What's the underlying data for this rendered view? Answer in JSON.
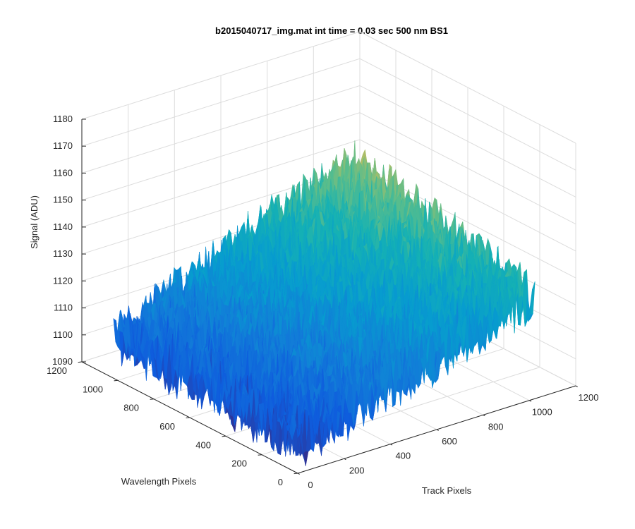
{
  "chart_data": {
    "type": "surface",
    "title": "b2015040717_img.mat int time = 0.03 sec  500 nm BS1",
    "xlabel": "Track Pixels",
    "ylabel": "Wavelength Pixels",
    "zlabel": "Signal (ADU)",
    "xlim": [
      0,
      1200
    ],
    "ylim": [
      0,
      1200
    ],
    "zlim": [
      1090,
      1180
    ],
    "x_ticks": [
      "0",
      "200",
      "400",
      "600",
      "800",
      "1000",
      "1200"
    ],
    "y_ticks": [
      "0",
      "200",
      "400",
      "600",
      "800",
      "1000",
      "1200"
    ],
    "z_ticks": [
      "1090",
      "1100",
      "1110",
      "1120",
      "1130",
      "1140",
      "1150",
      "1160",
      "1170",
      "1180"
    ],
    "grid": true,
    "colormap": "parula",
    "data_extent": {
      "x": [
        0,
        1024
      ],
      "y": [
        0,
        1024
      ]
    },
    "signal_trend": {
      "corner_x0_y0": 1100,
      "corner_xmax_y0": 1128,
      "corner_x0_ymax": 1106,
      "corner_xmax_ymax": 1142,
      "noise_amplitude": 10
    },
    "colors": {
      "low": "#1f5fd6",
      "mid": "#1ab2b0",
      "high": "#f9c22e"
    }
  }
}
